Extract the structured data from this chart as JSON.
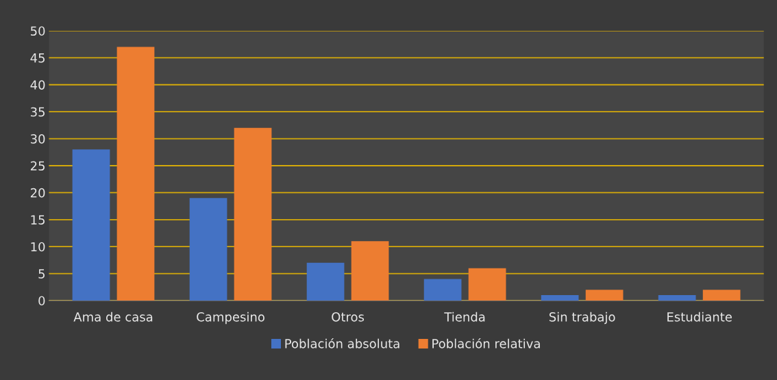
{
  "chart_data": {
    "type": "bar",
    "categories": [
      "Ama de casa",
      "Campesino",
      "Otros",
      "Tienda",
      "Sin trabajo",
      "Estudiante"
    ],
    "series": [
      {
        "name": "Población absoluta",
        "color": "#4472c4",
        "values": [
          28,
          19,
          7,
          4,
          1,
          1
        ]
      },
      {
        "name": "Población relativa",
        "color": "#ed7d31",
        "values": [
          47,
          32,
          11,
          6,
          2,
          2
        ]
      }
    ],
    "ylim": [
      0,
      50
    ],
    "yticks": [
      0,
      5,
      10,
      15,
      20,
      25,
      30,
      35,
      40,
      45,
      50
    ],
    "grid": "y",
    "legend": "bottom"
  }
}
